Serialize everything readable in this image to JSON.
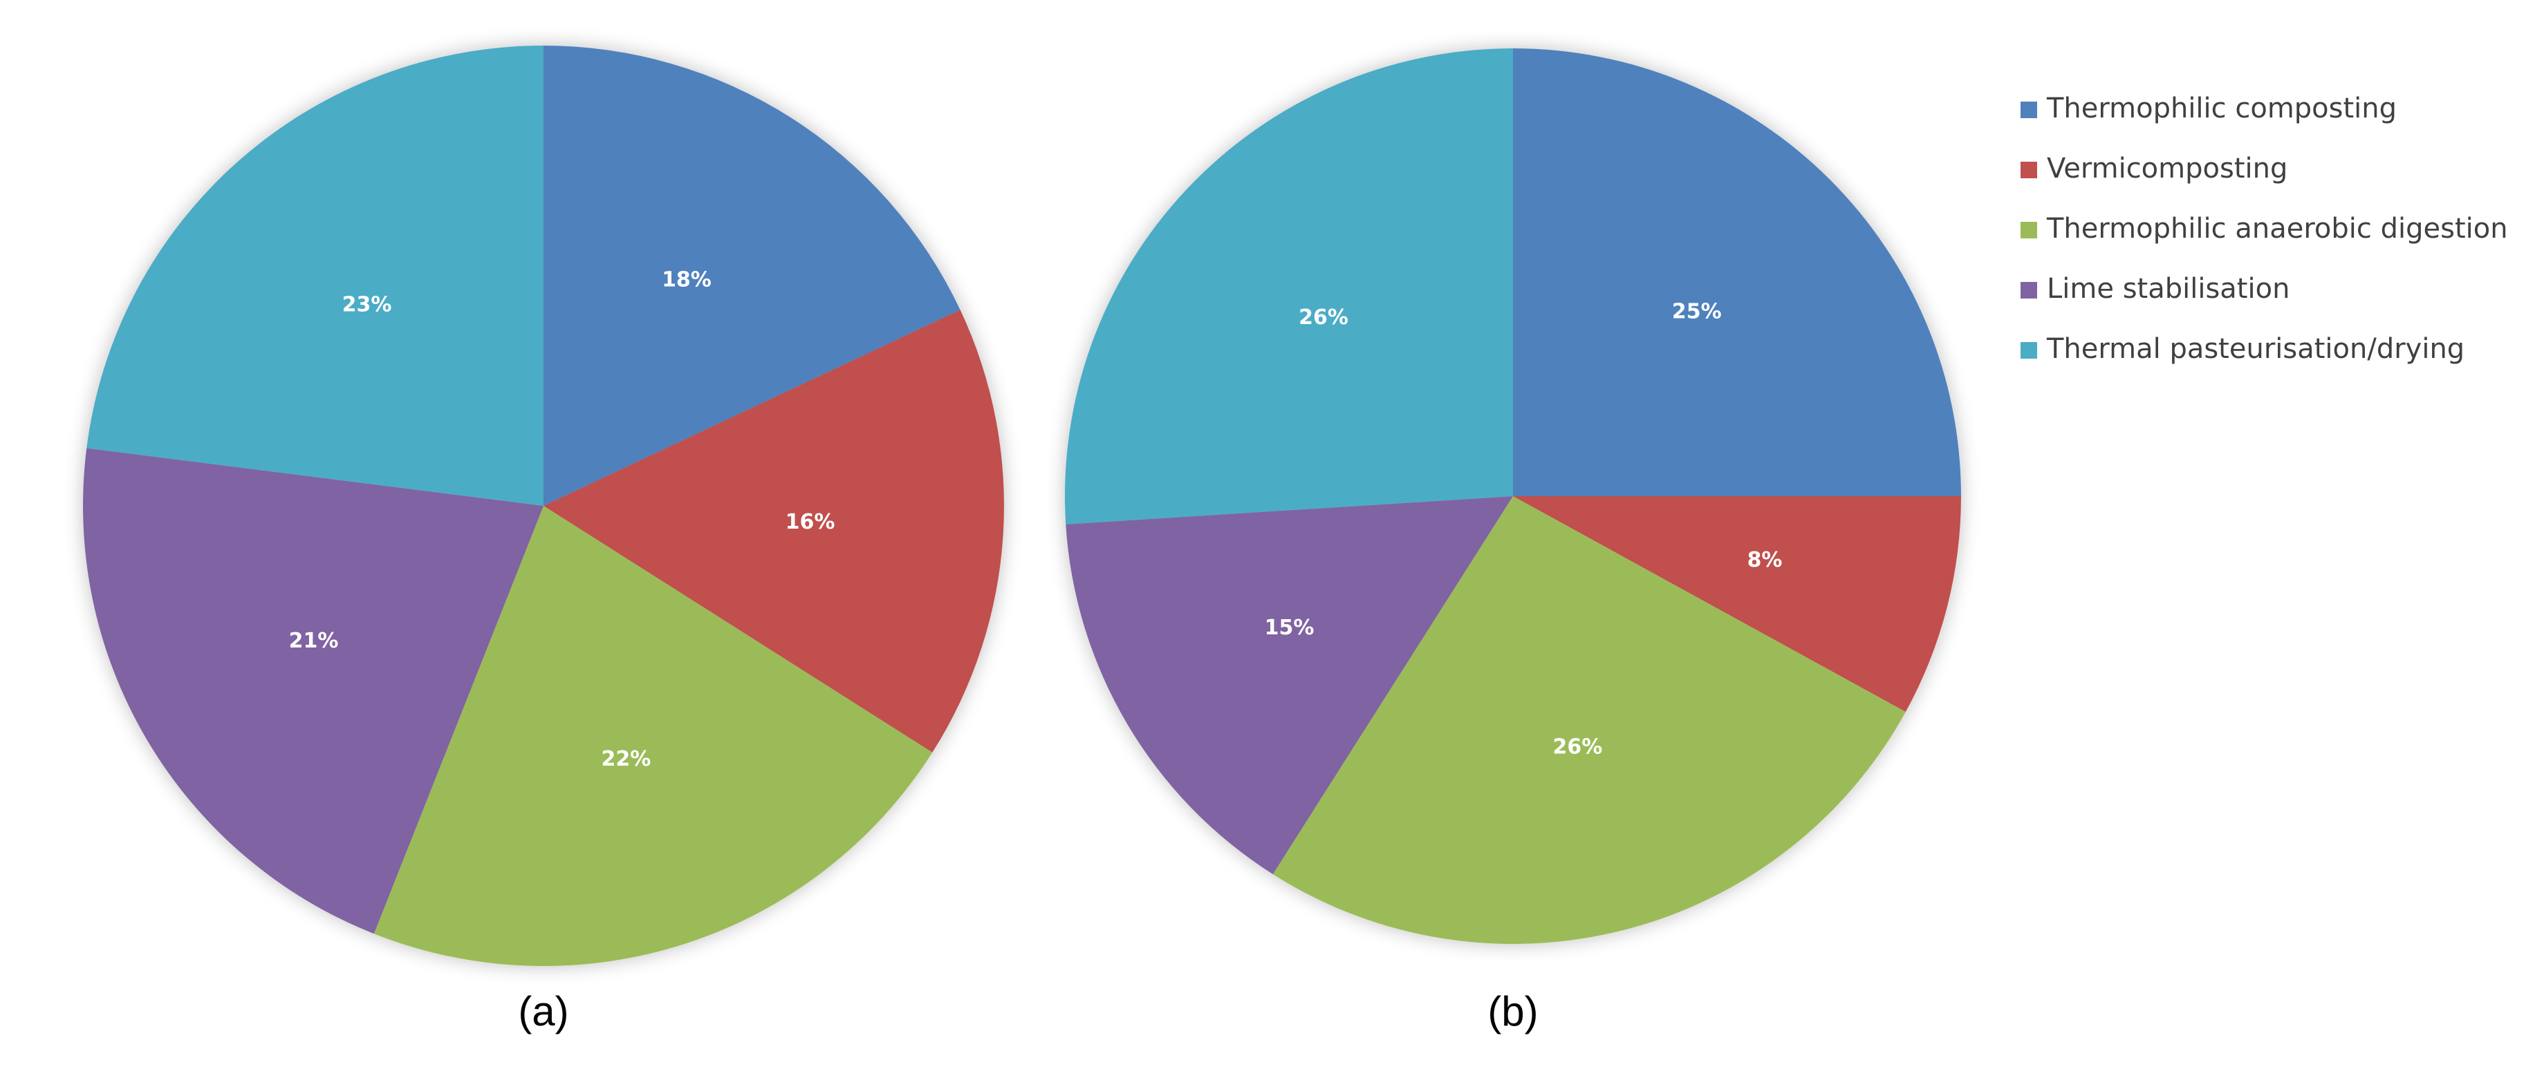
{
  "chart_data": [
    {
      "type": "pie",
      "caption": "(a)",
      "categories": [
        "Thermophilic composting",
        "Vermicomposting",
        "Thermophilic anaerobic digestion",
        "Lime stabilisation",
        "Thermal pasteurisation/drying"
      ],
      "colors": [
        "#4f81bd",
        "#c0504d",
        "#9bbb59",
        "#8064a2",
        "#4bacc6"
      ],
      "values": [
        18,
        16,
        22,
        21,
        23
      ],
      "value_labels": [
        "18%",
        "16%",
        "22%",
        "21%",
        "23%"
      ]
    },
    {
      "type": "pie",
      "caption": "(b)",
      "values": [
        25,
        8,
        26,
        15,
        26
      ],
      "value_labels": [
        "25%",
        "8%",
        "26%",
        "15%",
        "26%"
      ]
    }
  ]
}
